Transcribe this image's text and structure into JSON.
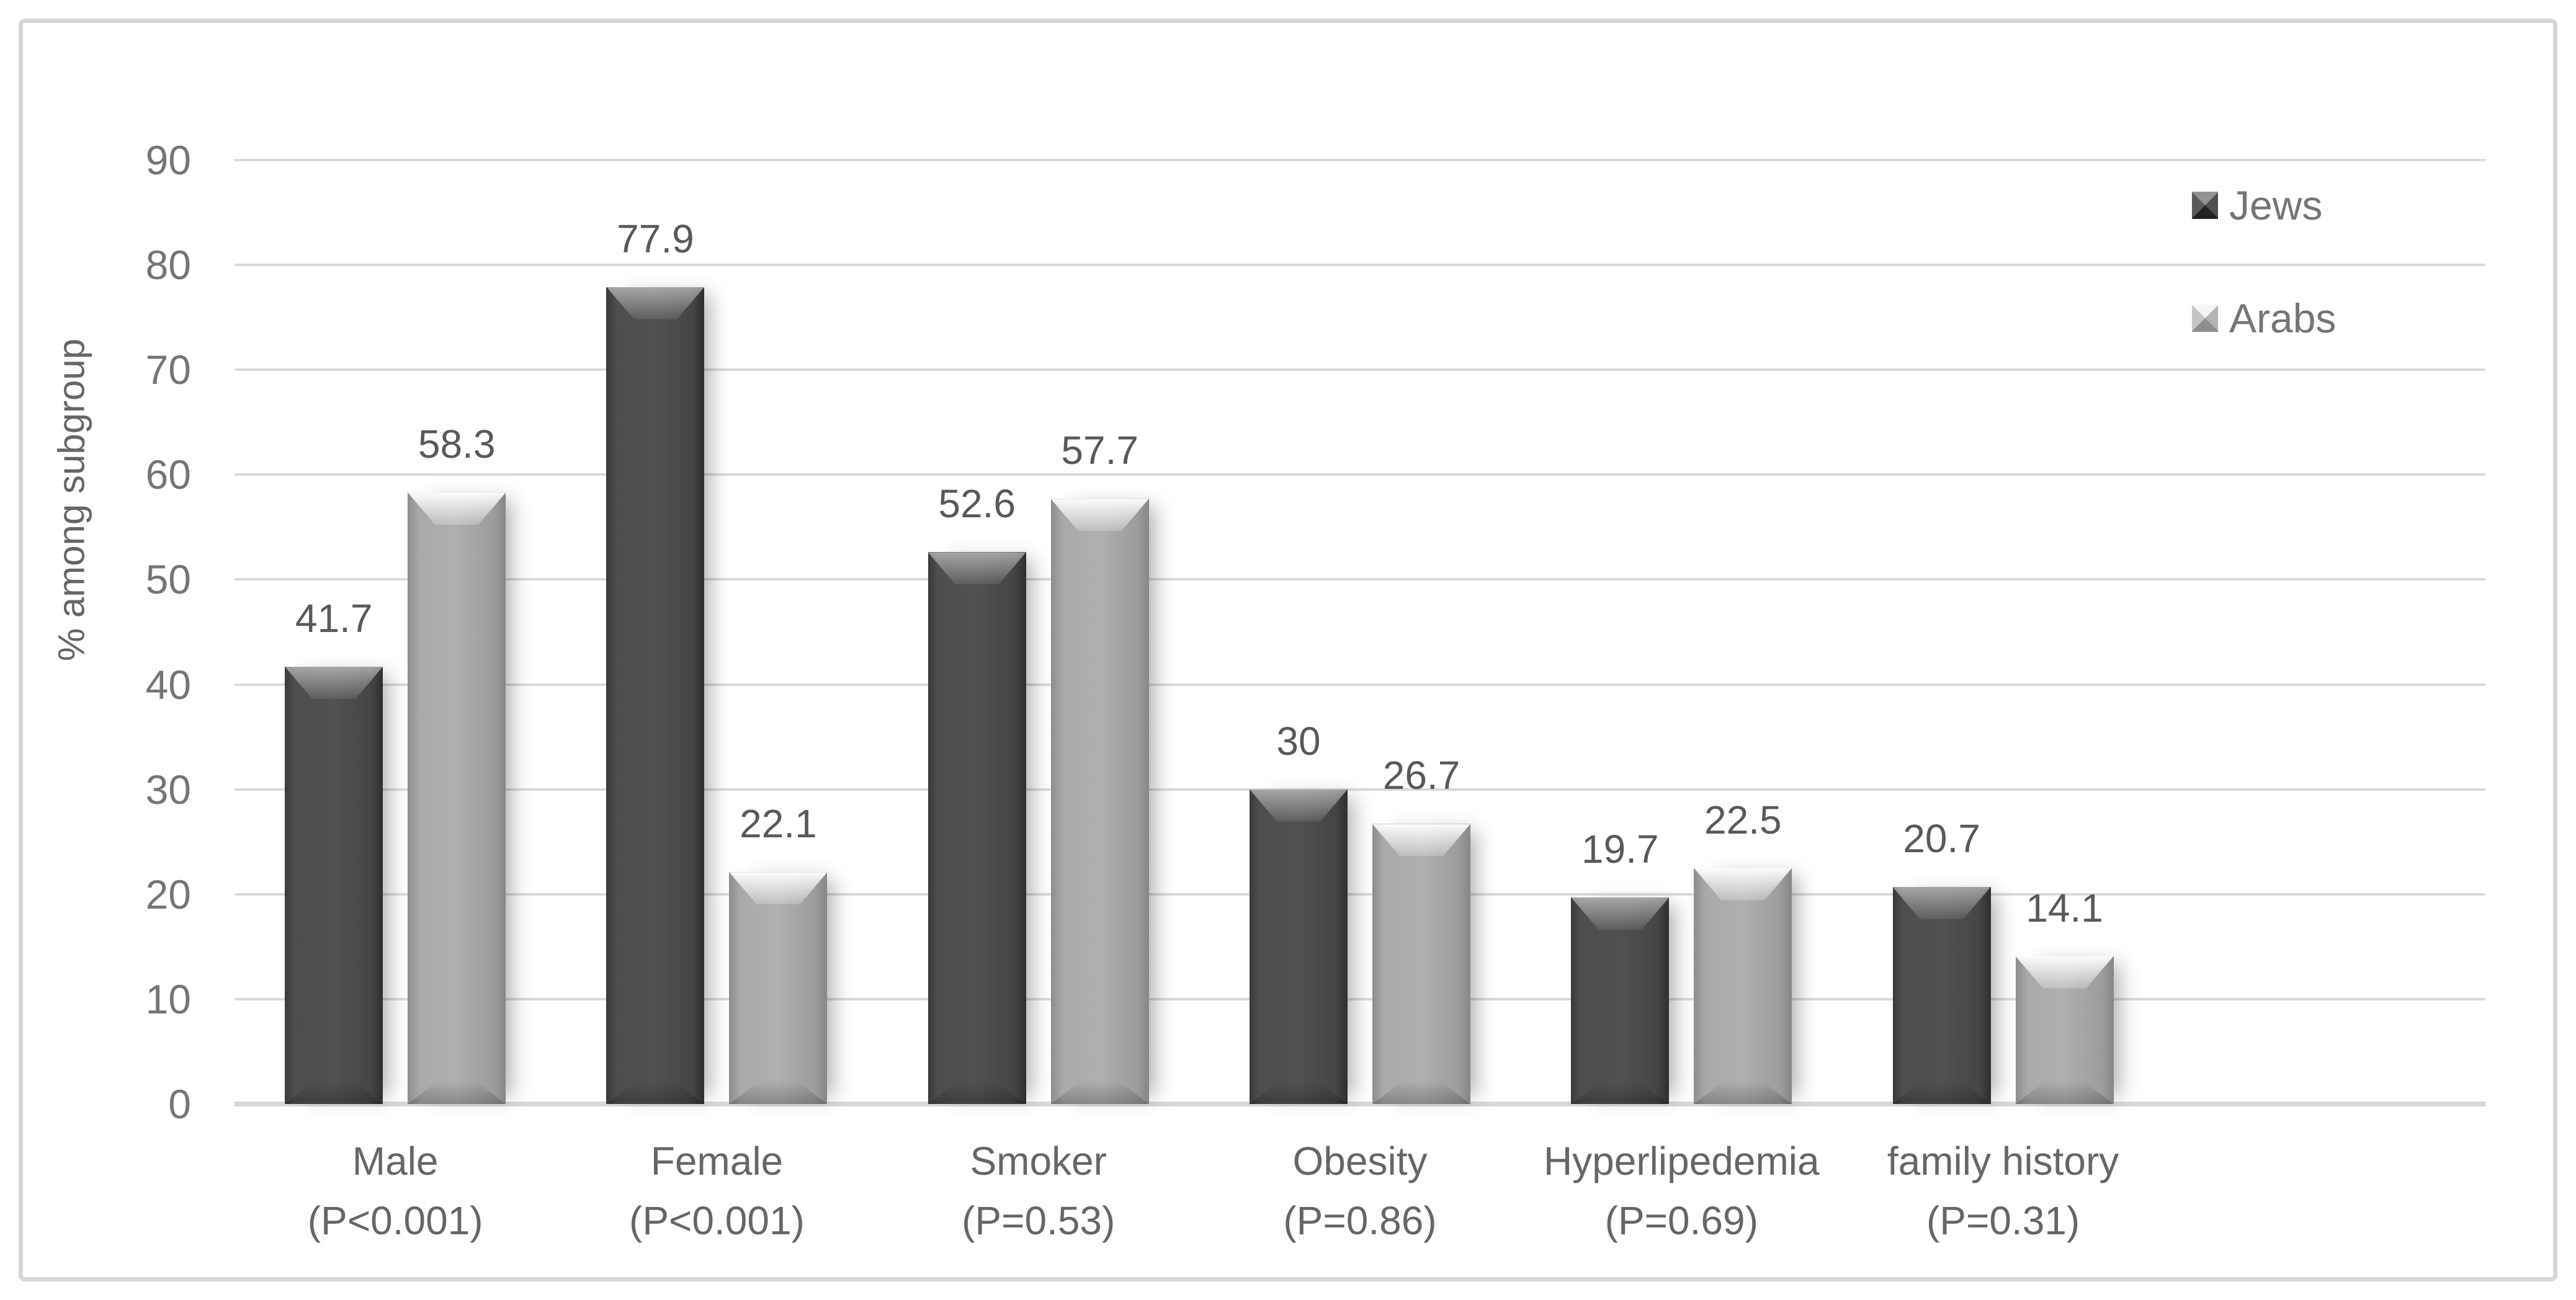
{
  "figure": {
    "background": "#ffffff",
    "border_color": "#d6d6d6"
  },
  "colors": {
    "gridline": "#dadada",
    "axis_text": "#757575",
    "label_text": "#595959",
    "category_text": "#666666",
    "jews_bar": "#474747",
    "arabs_bar": "#a6a6a6"
  },
  "chart_data": {
    "type": "bar",
    "title": "",
    "xlabel": "",
    "ylabel": "% among subgroup",
    "ylim": [
      0,
      90
    ],
    "yticks": [
      0,
      10,
      20,
      30,
      40,
      50,
      60,
      70,
      80,
      90
    ],
    "grid": "horizontal",
    "legend_position": "top-right",
    "axis_slots": 7,
    "categories": [
      "Male",
      "Female",
      "Smoker",
      "Obesity",
      "Hyperlipedemia",
      "family history"
    ],
    "category_sublabels": [
      "(P<0.001)",
      "(P<0.001)",
      "(P=0.53)",
      "(P=0.86)",
      "(P=0.69)",
      "(P=0.31)"
    ],
    "series": [
      {
        "name": "Jews",
        "color": "#474747",
        "values": [
          41.7,
          77.9,
          52.6,
          30,
          19.7,
          20.7
        ],
        "labels": [
          "41.7",
          "77.9",
          "52.6",
          "30",
          "19.7",
          "20.7"
        ]
      },
      {
        "name": "Arabs",
        "color": "#a6a6a6",
        "values": [
          58.3,
          22.1,
          57.7,
          26.7,
          22.5,
          14.1
        ],
        "labels": [
          "58.3",
          "22.1",
          "57.7",
          "26.7",
          "22.5",
          "14.1"
        ]
      }
    ]
  }
}
